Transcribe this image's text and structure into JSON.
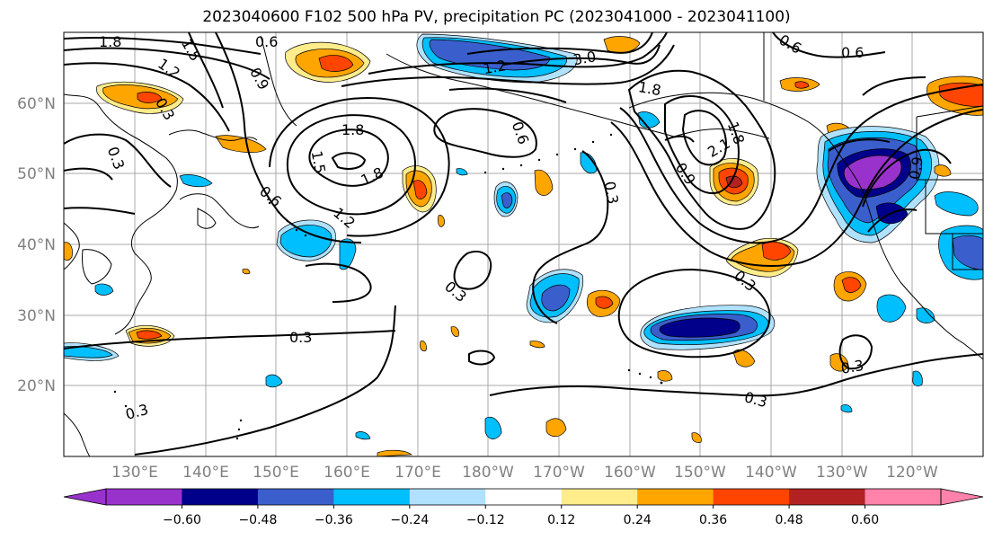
{
  "title": "2023040600 F102 500 hPa PV, precipitation PC (2023041000 - 2023041100)",
  "lat_labels": [
    "60°N",
    "50°N",
    "40°N",
    "30°N",
    "20°N"
  ],
  "lon_labels": [
    "130°E",
    "140°E",
    "150°E",
    "160°E",
    "170°E",
    "180°W",
    "170°W",
    "160°W",
    "150°W",
    "140°W",
    "130°W",
    "120°W"
  ],
  "contour_labels": [
    "1.8",
    "0.6",
    "1.5",
    "1.2",
    "0.9",
    "0.3",
    "0.3",
    "1.2",
    "3.0",
    "1.8",
    "0.6",
    "0.6",
    "1.8",
    "0.6",
    "1.5",
    "0.6",
    "1.8",
    "1.2",
    "0.3",
    "0.3",
    "0.3",
    "0.3",
    "0.9",
    "2.1",
    "1.8",
    "0.3",
    "0.3",
    "0.3",
    "0.9"
  ],
  "colorbar": {
    "colors": [
      "#9932cc",
      "#00008b",
      "#3a5fcd",
      "#00bfff",
      "#b0e2ff",
      "#ffffff",
      "#ffec8b",
      "#ffa500",
      "#ff4500",
      "#b22222",
      "#ff82ab"
    ],
    "tick_labels": [
      "−0.60",
      "−0.48",
      "−0.36",
      "−0.24",
      "−0.12",
      "0.12",
      "0.24",
      "0.36",
      "0.48",
      "0.60"
    ]
  }
}
